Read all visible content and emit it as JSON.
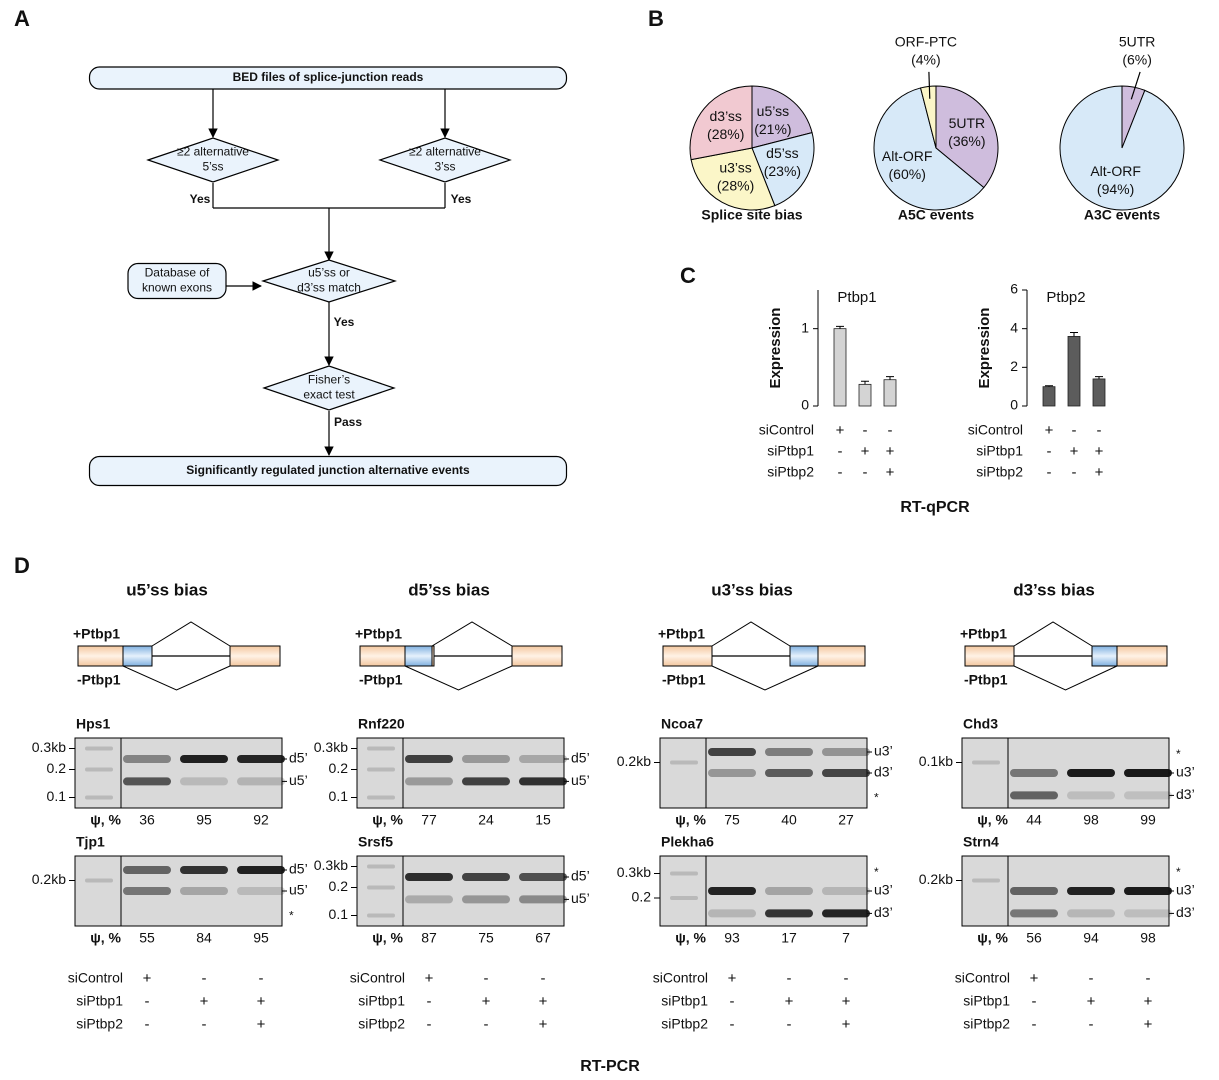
{
  "panel_a": {
    "label": "A",
    "nodes": [
      {
        "lines": [
          "BED files of splice-junction reads"
        ]
      },
      {
        "lines": [
          "≥2 alternative",
          "5’ss"
        ]
      },
      {
        "lines": [
          "≥2 alternative",
          "3’ss"
        ]
      },
      {
        "lines": [
          "Database of",
          "known exons"
        ]
      },
      {
        "lines": [
          "u5’ss or",
          "d3’ss match"
        ]
      },
      {
        "lines": [
          "Fisher’s",
          "exact test"
        ]
      },
      {
        "lines": [
          "Significantly regulated  junction alternative events"
        ]
      }
    ],
    "edge_labels": [
      "Yes",
      "Yes",
      "Yes",
      "Pass"
    ]
  },
  "panel_b": {
    "label": "B",
    "charts": [
      {
        "type": "pie",
        "title": "Splice site bias",
        "slices": [
          "u5’ss",
          "d5’ss",
          "u3’ss",
          "d3’ss"
        ],
        "values": [
          21,
          23,
          28,
          28
        ],
        "value_labels": [
          "(21%)",
          "(23%)",
          "(28%)",
          "(28%)"
        ],
        "colors": [
          "#cfbddd",
          "#d7e9f8",
          "#fbf6c8",
          "#f1c9d1"
        ]
      },
      {
        "type": "pie",
        "title": "A5C events",
        "slices": [
          "5UTR",
          "Alt-ORF",
          "ORF-PTC"
        ],
        "values": [
          36,
          60,
          4
        ],
        "value_labels": [
          "(36%)",
          "(60%)",
          "(4%)"
        ],
        "colors": [
          "#cfbddd",
          "#d7e9f8",
          "#fbf6c8"
        ]
      },
      {
        "type": "pie",
        "title": "A3C events",
        "slices": [
          "5UTR",
          "Alt-ORF"
        ],
        "values": [
          6,
          94
        ],
        "value_labels": [
          "(6%)",
          "(94%)"
        ],
        "colors": [
          "#cfbddd",
          "#d7e9f8"
        ]
      }
    ]
  },
  "conditions": {
    "names": [
      "siControl",
      "siPtbp1",
      "siPtbp2"
    ],
    "marks": [
      [
        "+",
        "-",
        "-"
      ],
      [
        "-",
        "+",
        "+"
      ],
      [
        "-",
        "-",
        "+"
      ]
    ]
  },
  "panel_c": {
    "label": "C",
    "caption": "RT-qPCR",
    "charts": [
      {
        "type": "bar",
        "title": "Ptbp1",
        "y_label": "Expression",
        "values": [
          1.0,
          0.28,
          0.34
        ],
        "errors": [
          0.03,
          0.04,
          0.04
        ],
        "color": "#d4d4d4",
        "ylim": [
          0,
          1.5
        ],
        "yticks": [
          0,
          1
        ]
      },
      {
        "type": "bar",
        "title": "Ptbp2",
        "y_label": "Expression",
        "values": [
          1.0,
          3.6,
          1.4
        ],
        "errors": [
          0.05,
          0.2,
          0.12
        ],
        "color": "#5c5c5c",
        "ylim": [
          0,
          6
        ],
        "yticks": [
          0,
          2,
          4,
          6
        ]
      }
    ]
  },
  "panel_d": {
    "label": "D",
    "caption": "RT-PCR",
    "plus_label": "+Ptbp1",
    "minus_label": "-Ptbp1",
    "psi_label": "ψ, %",
    "columns": [
      {
        "title": "u5’ss bias",
        "gels": [
          {
            "gene": "Hps1",
            "ladder": [
              "0.3kb",
              "0.2",
              "0.1"
            ],
            "bands": [
              "d5’",
              "u5’"
            ],
            "psi": [
              36,
              95,
              92
            ]
          },
          {
            "gene": "Tjp1",
            "ladder": [
              "0.2kb"
            ],
            "bands": [
              "d5’",
              "u5’",
              "*"
            ],
            "psi": [
              55,
              84,
              95
            ]
          }
        ]
      },
      {
        "title": "d5’ss bias",
        "gels": [
          {
            "gene": "Rnf220",
            "ladder": [
              "0.3kb",
              "0.2",
              "0.1"
            ],
            "bands": [
              "d5’",
              "u5’"
            ],
            "psi": [
              77,
              24,
              15
            ]
          },
          {
            "gene": "Srsf5",
            "ladder": [
              "0.3kb",
              "0.2",
              "0.1"
            ],
            "bands": [
              "d5’",
              "u5’"
            ],
            "psi": [
              87,
              75,
              67
            ]
          }
        ]
      },
      {
        "title": "u3’ss bias",
        "gels": [
          {
            "gene": "Ncoa7",
            "ladder": [
              "0.2kb"
            ],
            "bands": [
              "u3’",
              "d3’",
              "*"
            ],
            "psi": [
              75,
              40,
              27
            ]
          },
          {
            "gene": "Plekha6",
            "ladder": [
              "0.3kb",
              "0.2"
            ],
            "bands": [
              "*",
              "u3’",
              "d3’"
            ],
            "psi": [
              93,
              17,
              7
            ]
          }
        ]
      },
      {
        "title": "d3’ss bias",
        "gels": [
          {
            "gene": "Chd3",
            "ladder": [
              "0.1kb"
            ],
            "bands": [
              "*",
              "u3’",
              "d3’"
            ],
            "psi": [
              44,
              98,
              99
            ]
          },
          {
            "gene": "Strn4",
            "ladder": [
              "0.2kb"
            ],
            "bands": [
              "*",
              "u3’",
              "d3’"
            ],
            "psi": [
              56,
              94,
              98
            ]
          }
        ]
      }
    ]
  }
}
